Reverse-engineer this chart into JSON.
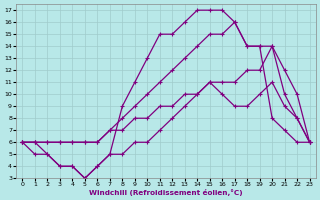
{
  "xlabel": "Windchill (Refroidissement éolien,°C)",
  "xlim": [
    -0.5,
    23.5
  ],
  "ylim": [
    3,
    17.5
  ],
  "xticks": [
    0,
    1,
    2,
    3,
    4,
    5,
    6,
    7,
    8,
    9,
    10,
    11,
    12,
    13,
    14,
    15,
    16,
    17,
    18,
    19,
    20,
    21,
    22,
    23
  ],
  "yticks": [
    3,
    4,
    5,
    6,
    7,
    8,
    9,
    10,
    11,
    12,
    13,
    14,
    15,
    16,
    17
  ],
  "line_color": "#800080",
  "bg_color": "#b8e8e8",
  "grid_color": "#a0cccc",
  "line1_x": [
    0,
    1,
    2,
    3,
    4,
    5,
    6,
    7,
    8,
    9,
    10,
    11,
    12,
    13,
    14,
    15,
    16,
    17,
    18,
    19,
    20,
    21,
    22,
    23
  ],
  "line1_y": [
    6,
    5,
    5,
    4,
    4,
    3,
    4,
    5,
    5,
    6,
    6,
    7,
    8,
    9,
    10,
    11,
    10,
    9,
    9,
    10,
    11,
    9,
    8,
    6
  ],
  "line2_x": [
    0,
    1,
    2,
    3,
    4,
    5,
    6,
    7,
    8,
    9,
    10,
    11,
    12,
    13,
    14,
    15,
    16,
    17,
    18,
    19,
    20,
    21,
    22,
    23
  ],
  "line2_y": [
    6,
    6,
    6,
    6,
    6,
    6,
    6,
    7,
    7,
    8,
    8,
    9,
    9,
    10,
    10,
    11,
    11,
    11,
    12,
    12,
    14,
    12,
    10,
    6
  ],
  "line3_x": [
    0,
    1,
    2,
    3,
    4,
    5,
    6,
    7,
    8,
    9,
    10,
    11,
    12,
    13,
    14,
    15,
    16,
    17,
    18,
    19,
    20,
    21,
    22,
    23
  ],
  "line3_y": [
    6,
    6,
    6,
    6,
    6,
    6,
    6,
    7,
    8,
    9,
    10,
    11,
    12,
    13,
    14,
    15,
    15,
    16,
    14,
    14,
    14,
    10,
    8,
    6
  ],
  "line4_x": [
    0,
    1,
    2,
    3,
    4,
    5,
    6,
    7,
    8,
    9,
    10,
    11,
    12,
    13,
    14,
    15,
    16,
    17,
    18,
    19,
    20,
    21,
    22,
    23
  ],
  "line4_y": [
    6,
    6,
    5,
    4,
    4,
    3,
    4,
    5,
    9,
    11,
    13,
    15,
    15,
    16,
    17,
    17,
    17,
    16,
    14,
    14,
    8,
    7,
    6,
    6
  ]
}
